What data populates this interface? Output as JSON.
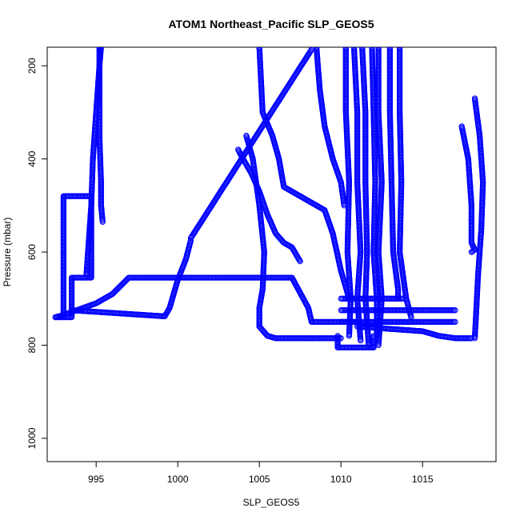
{
  "chart_data": {
    "type": "scatter",
    "title": "ATOM1 Northeast_Pacific SLP_GEOS5",
    "xlabel": "SLP_GEOS5",
    "ylabel": "Pressure (mbar)",
    "xlim": [
      992,
      1019.5
    ],
    "ylim": [
      1050,
      160
    ],
    "y_reversed": true,
    "x_ticks": [
      995,
      1000,
      1005,
      1010,
      1015
    ],
    "y_ticks": [
      200,
      400,
      600,
      800,
      1000
    ],
    "grid": false,
    "point_style": "open-circle",
    "color": "#0000ff",
    "series": [
      {
        "x": [
          992.5,
          993.5,
          993.5,
          994.7,
          994.7,
          993.0,
          993.0,
          992.5
        ],
        "y": [
          740,
          740,
          655,
          655,
          480,
          480,
          735,
          740
        ]
      },
      {
        "x": [
          994.4,
          994.5,
          994.6,
          994.7,
          994.8,
          995.0,
          995.2,
          995.3
        ],
        "y": [
          650,
          600,
          550,
          500,
          400,
          300,
          200,
          160
        ]
      },
      {
        "x": [
          995.2,
          995.2,
          995.2,
          995.3,
          995.3,
          995.4
        ],
        "y": [
          160,
          250,
          350,
          450,
          500,
          535
        ]
      },
      {
        "x": [
          993.0,
          995.0,
          996.0,
          997.0,
          1007.0,
          1008.0,
          1008.2,
          1008.5,
          1010.0,
          1011.0
        ],
        "y": [
          735,
          710,
          690,
          655,
          655,
          720,
          750,
          750,
          750,
          750
        ]
      },
      {
        "x": [
          993.5,
          999.2,
          999.5,
          1000.0,
          1000.5,
          1000.8
        ],
        "y": [
          725,
          738,
          720,
          660,
          615,
          575
        ]
      },
      {
        "x": [
          1000.8,
          1008.2
        ],
        "y": [
          570,
          165
        ]
      },
      {
        "x": [
          1003.7,
          1004.0,
          1004.5,
          1005.0,
          1005.5,
          1006.0,
          1006.5,
          1007.0,
          1007.5
        ],
        "y": [
          380,
          400,
          430,
          470,
          520,
          560,
          580,
          590,
          620
        ]
      },
      {
        "x": [
          1004.2,
          1004.6,
          1005.0,
          1005.3,
          1005.2,
          1005.0,
          1005.0
        ],
        "y": [
          350,
          400,
          500,
          600,
          680,
          720,
          760
        ]
      },
      {
        "x": [
          1005.0,
          1005.5,
          1006.0,
          1010.0
        ],
        "y": [
          760,
          780,
          785,
          785
        ]
      },
      {
        "x": [
          1005.0,
          1005.2,
          1005.8,
          1006.2,
          1006.5,
          1008.0,
          1009.0,
          1009.5,
          1010.0,
          1010.5
        ],
        "y": [
          160,
          300,
          350,
          400,
          460,
          490,
          510,
          560,
          640,
          700
        ]
      },
      {
        "x": [
          1008.5,
          1008.7,
          1009.0,
          1009.5,
          1010.0,
          1010.2
        ],
        "y": [
          160,
          250,
          330,
          400,
          450,
          500
        ]
      },
      {
        "x": [
          1009.8,
          1009.8,
          1012.0,
          1012.0
        ],
        "y": [
          780,
          805,
          805,
          780
        ]
      },
      {
        "x": [
          1010.3,
          1010.3,
          1010.5,
          1010.4,
          1010.6,
          1010.5
        ],
        "y": [
          160,
          300,
          450,
          600,
          700,
          780
        ]
      },
      {
        "x": [
          1010.8,
          1011.0,
          1011.0,
          1011.2,
          1011.0,
          1011.2
        ],
        "y": [
          160,
          300,
          450,
          600,
          700,
          790
        ]
      },
      {
        "x": [
          1011.3,
          1011.5,
          1011.5,
          1011.6,
          1011.5,
          1011.7
        ],
        "y": [
          160,
          300,
          450,
          600,
          700,
          800
        ]
      },
      {
        "x": [
          1011.9,
          1012.0,
          1012.1,
          1012.0,
          1012.2,
          1012.2
        ],
        "y": [
          160,
          300,
          450,
          600,
          700,
          780
        ]
      },
      {
        "x": [
          1012.3,
          1012.3,
          1012.5,
          1012.3,
          1012.5,
          1012.3
        ],
        "y": [
          160,
          300,
          450,
          600,
          700,
          800
        ]
      },
      {
        "x": [
          1013.0,
          1013.0,
          1013.1,
          1013.2,
          1013.5,
          1013.5
        ],
        "y": [
          160,
          300,
          450,
          600,
          680,
          700
        ]
      },
      {
        "x": [
          1013.6,
          1013.6,
          1013.7,
          1013.6,
          1014.0,
          1014.3
        ],
        "y": [
          160,
          300,
          450,
          600,
          700,
          740
        ]
      },
      {
        "x": [
          1010.0,
          1013.8
        ],
        "y": [
          700,
          700
        ]
      },
      {
        "x": [
          1010.0,
          1017.0
        ],
        "y": [
          725,
          725
        ]
      },
      {
        "x": [
          1010.0,
          1017.0
        ],
        "y": [
          750,
          750
        ]
      },
      {
        "x": [
          1011.0,
          1015.0,
          1016.0,
          1017.0,
          1018.0
        ],
        "y": [
          760,
          770,
          780,
          785,
          785
        ]
      },
      {
        "x": [
          1018.2,
          1018.5,
          1018.7,
          1018.6,
          1018.4,
          1018.3,
          1018.2
        ],
        "y": [
          270,
          350,
          450,
          550,
          650,
          720,
          785
        ]
      },
      {
        "x": [
          1017.4,
          1017.8,
          1018.0,
          1018.0,
          1018.2,
          1018.0
        ],
        "y": [
          330,
          400,
          500,
          580,
          595,
          600
        ]
      }
    ]
  }
}
